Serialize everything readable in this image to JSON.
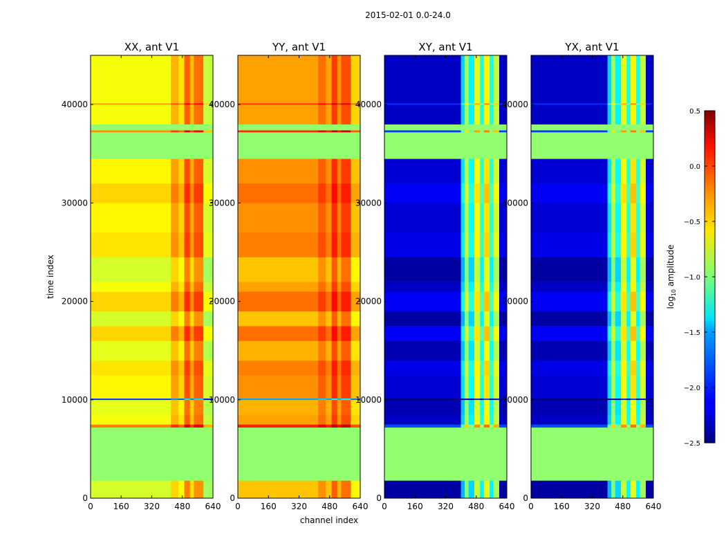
{
  "chart_data": {
    "type": "heatmap",
    "title": "2015-02-01 0.0-24.0",
    "xlabel": "channel index",
    "ylabel": "time index",
    "xlim": [
      0,
      640
    ],
    "ylim": [
      0,
      45000
    ],
    "xticks": [
      0,
      160,
      320,
      480,
      640
    ],
    "yticks": [
      0,
      10000,
      20000,
      30000,
      40000
    ],
    "colorbar": {
      "label": "log10 amplitude",
      "label_main": "log",
      "label_sub": "10",
      "label_rest": " amplitude",
      "range": [
        -2.5,
        0.5
      ],
      "ticks": [
        "0.5",
        "0.0",
        "−0.5",
        "−1.0",
        "−1.5",
        "−2.0",
        "−2.5"
      ],
      "tick_values": [
        0.5,
        0.0,
        -0.5,
        -1.0,
        -1.5,
        -2.0,
        -2.5
      ],
      "colormap": "jet"
    },
    "flag_value": -0.95,
    "time_bands": [
      {
        "t": [
          0,
          1800
        ],
        "flag": false,
        "offset": -0.1
      },
      {
        "t": [
          1800,
          7200
        ],
        "flag": true,
        "offset": 0
      },
      {
        "t": [
          7200,
          7500
        ],
        "flag": false,
        "offset": 0.4
      },
      {
        "t": [
          7500,
          8500
        ],
        "flag": false,
        "offset": 0
      },
      {
        "t": [
          8500,
          10000
        ],
        "flag": false,
        "offset": -0.05
      },
      {
        "t": [
          10000,
          10150
        ],
        "flag": false,
        "offset": -1.3
      },
      {
        "t": [
          10150,
          12500
        ],
        "flag": false,
        "offset": 0.05
      },
      {
        "t": [
          12500,
          14000
        ],
        "flag": false,
        "offset": 0.1
      },
      {
        "t": [
          14000,
          16000
        ],
        "flag": false,
        "offset": -0.05
      },
      {
        "t": [
          16000,
          17500
        ],
        "flag": false,
        "offset": 0.15
      },
      {
        "t": [
          17500,
          19000
        ],
        "flag": false,
        "offset": -0.1
      },
      {
        "t": [
          19000,
          21000
        ],
        "flag": false,
        "offset": 0.15
      },
      {
        "t": [
          21000,
          22000
        ],
        "flag": false,
        "offset": 0
      },
      {
        "t": [
          22000,
          24500
        ],
        "flag": false,
        "offset": -0.1
      },
      {
        "t": [
          24500,
          27000
        ],
        "flag": false,
        "offset": 0.1
      },
      {
        "t": [
          27000,
          30000
        ],
        "flag": false,
        "offset": 0.05
      },
      {
        "t": [
          30000,
          32000
        ],
        "flag": false,
        "offset": 0.15
      },
      {
        "t": [
          32000,
          34500
        ],
        "flag": false,
        "offset": 0.05
      },
      {
        "t": [
          34500,
          37200
        ],
        "flag": true,
        "offset": 0
      },
      {
        "t": [
          37200,
          37400
        ],
        "flag": false,
        "offset": 0.35
      },
      {
        "t": [
          37400,
          38000
        ],
        "flag": true,
        "offset": 0
      },
      {
        "t": [
          38000,
          40000
        ],
        "flag": false,
        "offset": 0
      },
      {
        "t": [
          40000,
          40150
        ],
        "flag": false,
        "offset": 0.3
      },
      {
        "t": [
          40150,
          45000
        ],
        "flag": false,
        "offset": 0
      }
    ],
    "panels": [
      {
        "title": "XX, ant V1",
        "channel_profile": [
          [
            0,
            420,
            -0.65
          ],
          [
            420,
            460,
            -0.4
          ],
          [
            460,
            490,
            -0.55
          ],
          [
            490,
            520,
            -0.15
          ],
          [
            520,
            540,
            -0.45
          ],
          [
            540,
            590,
            -0.2
          ],
          [
            590,
            640,
            -0.8
          ]
        ]
      },
      {
        "title": "YY, ant V1",
        "channel_profile": [
          [
            0,
            420,
            -0.35
          ],
          [
            420,
            460,
            -0.2
          ],
          [
            460,
            490,
            -0.35
          ],
          [
            490,
            520,
            -0.05
          ],
          [
            520,
            540,
            -0.3
          ],
          [
            540,
            590,
            -0.1
          ],
          [
            590,
            640,
            -0.5
          ]
        ]
      },
      {
        "title": "XY, ant V1",
        "channel_profile": [
          [
            0,
            400,
            -2.3
          ],
          [
            400,
            420,
            -1.5
          ],
          [
            420,
            440,
            -0.9
          ],
          [
            440,
            470,
            -1.4
          ],
          [
            470,
            500,
            -0.7
          ],
          [
            500,
            520,
            -1.3
          ],
          [
            520,
            550,
            -0.6
          ],
          [
            550,
            570,
            -1.3
          ],
          [
            570,
            600,
            -0.8
          ],
          [
            600,
            640,
            -2.3
          ]
        ]
      },
      {
        "title": "YX, ant V1",
        "channel_profile": [
          [
            0,
            400,
            -2.3
          ],
          [
            400,
            420,
            -1.5
          ],
          [
            420,
            440,
            -0.9
          ],
          [
            440,
            470,
            -1.4
          ],
          [
            470,
            500,
            -0.7
          ],
          [
            500,
            520,
            -1.3
          ],
          [
            520,
            550,
            -0.6
          ],
          [
            550,
            570,
            -1.3
          ],
          [
            570,
            600,
            -0.8
          ],
          [
            600,
            640,
            -2.3
          ]
        ]
      }
    ]
  }
}
